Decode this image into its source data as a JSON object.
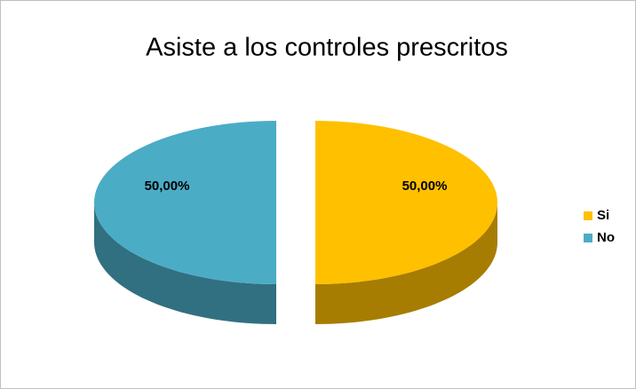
{
  "chart_data": {
    "type": "pie",
    "title": "Asiste a los controles prescritos",
    "categories": [
      "Si",
      "No"
    ],
    "values": [
      50,
      50
    ],
    "value_labels": [
      "50,00%",
      "50,00%"
    ],
    "colors": [
      "#ffc000",
      "#4bacc6"
    ],
    "legend": "right"
  }
}
